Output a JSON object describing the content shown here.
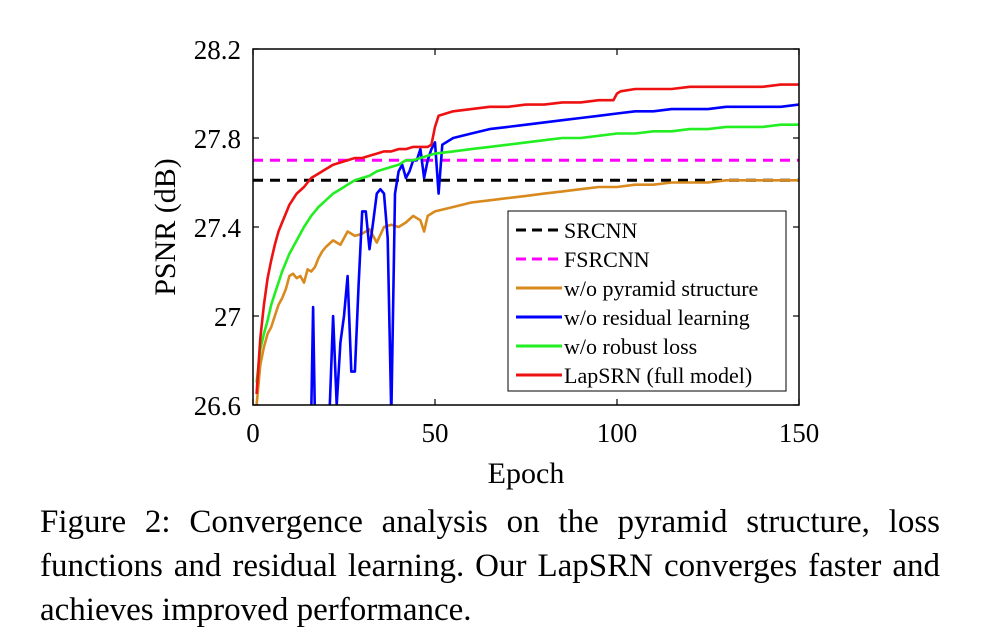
{
  "caption": {
    "label": "Figure 2:",
    "text": "Convergence analysis on the pyramid structure, loss functions and residual learning.  Our LapSRN converges faster and achieves improved performance."
  },
  "chart_data": {
    "type": "line",
    "title": "",
    "xlabel": "Epoch",
    "ylabel": "PSNR (dB)",
    "xlim": [
      0,
      150
    ],
    "ylim": [
      26.6,
      28.2
    ],
    "xticks": [
      0,
      50,
      100,
      150
    ],
    "xtick_labels": [
      "0",
      "50",
      "100",
      "150"
    ],
    "yticks": [
      26.6,
      27.0,
      27.4,
      27.8,
      28.2
    ],
    "ytick_labels": [
      "26.6",
      "27",
      "27.4",
      "27.8",
      "28.2"
    ],
    "grid": false,
    "legend_position": "bottom-right",
    "series": [
      {
        "name": "SRCNN",
        "color": "#000000",
        "dashed": true,
        "x": [
          0,
          150
        ],
        "y": [
          27.61,
          27.61
        ]
      },
      {
        "name": "FSRCNN",
        "color": "#ff00ff",
        "dashed": true,
        "x": [
          0,
          150
        ],
        "y": [
          27.7,
          27.7
        ]
      },
      {
        "name": "w/o pyramid structure",
        "color": "#d98a1e",
        "dashed": false,
        "x": [
          1,
          2,
          3,
          4,
          5,
          6,
          7,
          8,
          9,
          10,
          11,
          12,
          13,
          14,
          15,
          16,
          17,
          18,
          19,
          20,
          22,
          24,
          26,
          28,
          30,
          32,
          34,
          36,
          38,
          40,
          42,
          44,
          45,
          46,
          47,
          48,
          50,
          55,
          60,
          65,
          70,
          75,
          80,
          85,
          90,
          95,
          100,
          105,
          110,
          115,
          120,
          125,
          130,
          135,
          140,
          145,
          150
        ],
        "y": [
          26.6,
          26.78,
          26.86,
          26.92,
          26.95,
          27.0,
          27.05,
          27.08,
          27.12,
          27.18,
          27.19,
          27.17,
          27.18,
          27.15,
          27.21,
          27.2,
          27.22,
          27.26,
          27.29,
          27.31,
          27.34,
          27.32,
          27.38,
          27.36,
          27.37,
          27.39,
          27.33,
          27.4,
          27.41,
          27.4,
          27.42,
          27.45,
          27.44,
          27.43,
          27.38,
          27.45,
          27.47,
          27.49,
          27.51,
          27.52,
          27.53,
          27.54,
          27.55,
          27.56,
          27.57,
          27.58,
          27.58,
          27.59,
          27.59,
          27.6,
          27.6,
          27.6,
          27.61,
          27.61,
          27.61,
          27.61,
          27.61
        ]
      },
      {
        "name": "w/o residual learning",
        "color": "#0000ff",
        "dashed": false,
        "x": [
          16,
          16.5,
          17,
          18,
          19,
          20,
          21,
          22,
          23,
          24,
          25,
          26,
          27,
          28,
          29,
          30,
          31,
          32,
          33,
          34,
          35,
          36,
          37,
          38,
          39,
          40,
          41,
          42,
          43,
          44,
          45,
          46,
          47,
          48,
          49,
          50,
          51,
          52,
          55,
          60,
          65,
          70,
          75,
          80,
          85,
          90,
          95,
          100,
          105,
          110,
          115,
          120,
          125,
          130,
          135,
          140,
          145,
          150
        ],
        "y": [
          26.55,
          27.04,
          26.55,
          26.55,
          26.55,
          26.55,
          26.55,
          27.0,
          26.6,
          26.88,
          27.0,
          27.18,
          26.75,
          26.75,
          27.14,
          27.47,
          27.47,
          27.3,
          27.42,
          27.55,
          27.57,
          27.55,
          27.35,
          26.55,
          27.55,
          27.65,
          27.68,
          27.62,
          27.65,
          27.7,
          27.7,
          27.75,
          27.62,
          27.7,
          27.75,
          27.78,
          27.55,
          27.77,
          27.8,
          27.82,
          27.84,
          27.85,
          27.86,
          27.87,
          27.88,
          27.89,
          27.9,
          27.91,
          27.92,
          27.92,
          27.93,
          27.93,
          27.93,
          27.94,
          27.94,
          27.94,
          27.94,
          27.95
        ]
      },
      {
        "name": "w/o robust loss",
        "color": "#22ee22",
        "dashed": false,
        "x": [
          1,
          2,
          3,
          4,
          5,
          6,
          7,
          8,
          9,
          10,
          12,
          14,
          16,
          18,
          20,
          22,
          24,
          26,
          28,
          30,
          32,
          34,
          36,
          38,
          40,
          42,
          44,
          46,
          48,
          50,
          55,
          60,
          65,
          70,
          75,
          80,
          85,
          90,
          95,
          100,
          105,
          110,
          115,
          120,
          125,
          130,
          135,
          140,
          145,
          150
        ],
        "y": [
          26.7,
          26.85,
          26.92,
          26.98,
          27.05,
          27.1,
          27.15,
          27.2,
          27.24,
          27.28,
          27.34,
          27.4,
          27.45,
          27.49,
          27.52,
          27.55,
          27.57,
          27.59,
          27.61,
          27.62,
          27.63,
          27.65,
          27.66,
          27.67,
          27.68,
          27.7,
          27.7,
          27.71,
          27.72,
          27.73,
          27.74,
          27.75,
          27.76,
          27.77,
          27.78,
          27.79,
          27.8,
          27.8,
          27.81,
          27.82,
          27.82,
          27.83,
          27.83,
          27.84,
          27.84,
          27.85,
          27.85,
          27.85,
          27.86,
          27.86
        ]
      },
      {
        "name": "LapSRN (full model)",
        "color": "#ee1111",
        "dashed": false,
        "x": [
          1,
          2,
          3,
          4,
          5,
          6,
          7,
          8,
          9,
          10,
          12,
          14,
          16,
          18,
          20,
          22,
          24,
          26,
          28,
          30,
          32,
          34,
          36,
          38,
          40,
          42,
          44,
          46,
          48,
          49,
          50,
          51,
          55,
          60,
          65,
          70,
          75,
          80,
          85,
          90,
          95,
          99,
          100,
          101,
          105,
          110,
          115,
          120,
          125,
          130,
          135,
          140,
          145,
          150
        ],
        "y": [
          26.65,
          26.9,
          27.05,
          27.17,
          27.25,
          27.32,
          27.38,
          27.42,
          27.46,
          27.5,
          27.55,
          27.58,
          27.62,
          27.64,
          27.66,
          27.68,
          27.69,
          27.7,
          27.71,
          27.71,
          27.72,
          27.73,
          27.74,
          27.74,
          27.75,
          27.75,
          27.76,
          27.76,
          27.76,
          27.77,
          27.85,
          27.9,
          27.92,
          27.93,
          27.94,
          27.94,
          27.95,
          27.95,
          27.96,
          27.96,
          27.97,
          27.97,
          28.0,
          28.01,
          28.02,
          28.02,
          28.02,
          28.03,
          28.03,
          28.03,
          28.03,
          28.03,
          28.04,
          28.04
        ]
      }
    ]
  }
}
